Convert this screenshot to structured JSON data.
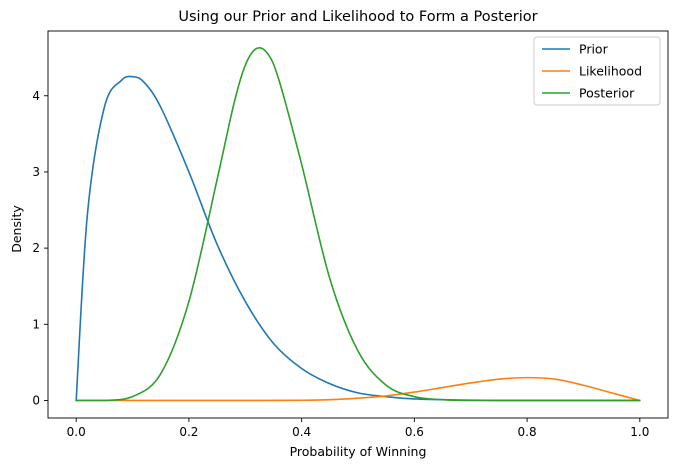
{
  "chart_data": {
    "type": "line",
    "title": "Using our Prior and Likelihood to Form a Posterior",
    "xlabel": "Probability of Winning",
    "ylabel": "Density",
    "xlim": [
      -0.05,
      1.05
    ],
    "ylim": [
      -0.23,
      4.85
    ],
    "xticks": [
      "0.0",
      "0.2",
      "0.4",
      "0.6",
      "0.8",
      "1.0"
    ],
    "yticks": [
      "0",
      "1",
      "2",
      "3",
      "4"
    ],
    "grid": false,
    "legend_position": "top-right",
    "series": [
      {
        "name": "Prior",
        "color": "#1f77b4",
        "x": [
          0.0,
          0.02,
          0.05,
          0.08,
          0.1,
          0.12,
          0.15,
          0.2,
          0.25,
          0.3,
          0.35,
          0.4,
          0.45,
          0.5,
          0.55,
          0.6,
          0.7,
          0.8,
          0.9,
          1.0
        ],
        "y": [
          0.0,
          2.45,
          3.85,
          4.2,
          4.25,
          4.18,
          3.85,
          3.0,
          2.05,
          1.3,
          0.75,
          0.42,
          0.22,
          0.1,
          0.05,
          0.02,
          0.004,
          0.0,
          0.0,
          0.0
        ]
      },
      {
        "name": "Likelihood",
        "color": "#ff7f0e",
        "x": [
          0.0,
          0.3,
          0.4,
          0.45,
          0.5,
          0.55,
          0.6,
          0.65,
          0.7,
          0.75,
          0.8,
          0.85,
          0.9,
          0.95,
          1.0
        ],
        "y": [
          0.0,
          0.0,
          0.003,
          0.01,
          0.03,
          0.06,
          0.11,
          0.17,
          0.23,
          0.28,
          0.3,
          0.28,
          0.2,
          0.1,
          0.0
        ]
      },
      {
        "name": "Posterior",
        "color": "#2ca02c",
        "x": [
          0.0,
          0.05,
          0.1,
          0.15,
          0.2,
          0.25,
          0.28,
          0.3,
          0.32,
          0.34,
          0.36,
          0.4,
          0.45,
          0.5,
          0.55,
          0.6,
          0.65,
          0.7,
          0.8,
          0.9,
          1.0
        ],
        "y": [
          0.0,
          0.0,
          0.05,
          0.35,
          1.3,
          2.9,
          3.9,
          4.4,
          4.62,
          4.55,
          4.2,
          3.1,
          1.6,
          0.65,
          0.2,
          0.05,
          0.01,
          0.0,
          0.0,
          0.0,
          0.0
        ]
      }
    ]
  }
}
